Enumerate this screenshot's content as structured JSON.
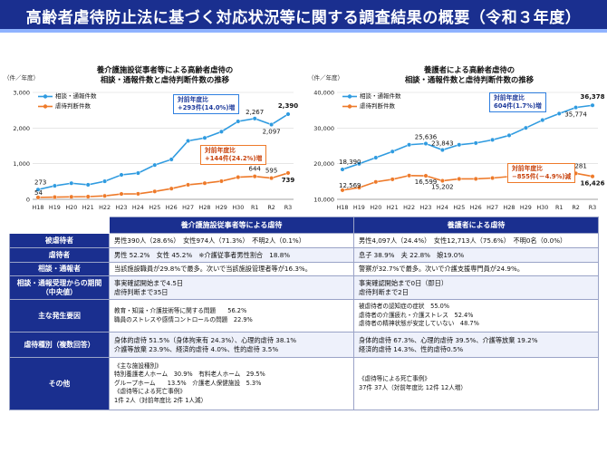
{
  "page": {
    "title": "高齢者虐待防止法に基づく対応状況等に関する調査結果の概要（令和３年度）"
  },
  "colors": {
    "header": "#1a2f8f",
    "consult_line": "#2f9be0",
    "judgment_line": "#ee7a2a",
    "callout_blue": "#2f7fe0",
    "callout_orange": "#ee7a2a"
  },
  "chart_data": [
    {
      "type": "line",
      "title": "養介護施設従事者等による高齢者虐待の\n相談・通報件数と虐待判断件数の推移",
      "yunit": "（件／年度）",
      "categories": [
        "H18",
        "H19",
        "H20",
        "H21",
        "H22",
        "H23",
        "H24",
        "H25",
        "H26",
        "H27",
        "H28",
        "H29",
        "H30",
        "R1",
        "R2",
        "R3"
      ],
      "ylim": [
        0,
        3000
      ],
      "yticks": [
        "0",
        "1,000",
        "2,000",
        "3,000"
      ],
      "yticks_values": [
        0,
        1000,
        2000,
        3000
      ],
      "series": [
        {
          "name": "相談・通報件数",
          "values": [
            273,
            379,
            451,
            408,
            506,
            687,
            736,
            962,
            1120,
            1640,
            1723,
            1898,
            2187,
            2267,
            2097,
            2390
          ]
        },
        {
          "name": "虐待判断件数",
          "values": [
            54,
            62,
            70,
            76,
            96,
            151,
            155,
            221,
            300,
            408,
            452,
            510,
            621,
            644,
            595,
            739
          ]
        }
      ],
      "point_labels": [
        {
          "series": 0,
          "index": 0,
          "text": "273"
        },
        {
          "series": 1,
          "index": 0,
          "text": "54"
        },
        {
          "series": 0,
          "index": 13,
          "text": "2,267"
        },
        {
          "series": 0,
          "index": 14,
          "text": "2,097"
        },
        {
          "series": 0,
          "index": 15,
          "text": "2,390"
        },
        {
          "series": 1,
          "index": 13,
          "text": "644"
        },
        {
          "series": 1,
          "index": 14,
          "text": "595"
        },
        {
          "series": 1,
          "index": 15,
          "text": "739"
        }
      ],
      "callouts": [
        {
          "text1": "対前年度比",
          "text2": "+293件(14.0%)増",
          "color": "blue"
        },
        {
          "text1": "対前年度比",
          "text2": "+144件(24.2%)増",
          "color": "orange"
        }
      ]
    },
    {
      "type": "line",
      "title": "養護者による高齢者虐待の\n相談・通報件数と虐待判断件数の推移",
      "yunit": "（件／年度）",
      "categories": [
        "H18",
        "H19",
        "H20",
        "H21",
        "H22",
        "H23",
        "H24",
        "H25",
        "H26",
        "H27",
        "H28",
        "H29",
        "H30",
        "R1",
        "R2",
        "R3"
      ],
      "ylim": [
        10000,
        40000
      ],
      "yticks": [
        "10,000",
        "20,000",
        "30,000",
        "40,000"
      ],
      "yticks_values": [
        10000,
        20000,
        30000,
        40000
      ],
      "series": [
        {
          "name": "相談・通報件数",
          "values": [
            18390,
            19971,
            21692,
            23404,
            25315,
            25636,
            23843,
            25310,
            25791,
            26688,
            27940,
            30040,
            32231,
            34057,
            35774,
            36378
          ]
        },
        {
          "name": "虐待判断件数",
          "values": [
            12569,
            13273,
            14889,
            15615,
            16668,
            16599,
            15202,
            15731,
            15739,
            15976,
            16384,
            17078,
            17249,
            16928,
            17281,
            16426
          ]
        }
      ],
      "point_labels": [
        {
          "series": 0,
          "index": 0,
          "text": "18,390"
        },
        {
          "series": 1,
          "index": 0,
          "text": "12,569"
        },
        {
          "series": 0,
          "index": 5,
          "text": "25,636"
        },
        {
          "series": 1,
          "index": 5,
          "text": "16,599"
        },
        {
          "series": 0,
          "index": 6,
          "text": "23,843"
        },
        {
          "series": 1,
          "index": 6,
          "text": "15,202"
        },
        {
          "series": 0,
          "index": 14,
          "text": "35,774"
        },
        {
          "series": 0,
          "index": 15,
          "text": "36,378"
        },
        {
          "series": 1,
          "index": 14,
          "text": "17,281"
        },
        {
          "series": 1,
          "index": 15,
          "text": "16,426"
        }
      ],
      "callouts": [
        {
          "text1": "対前年度比",
          "text2": "604件(1.7%)増",
          "color": "blue"
        },
        {
          "text1": "対前年度比",
          "text2": "−855件(－4.9%)減",
          "color": "orange"
        }
      ]
    }
  ],
  "table": {
    "col_headers": [
      "養介護施設従事者等による虐待",
      "養護者による虐待"
    ],
    "rows": [
      {
        "label": "被虐待者",
        "left": "男性390人（28.6%）　女性974人（71.3%）　不明2人（0.1%）",
        "right": "男性4,097人（24.4%）　女性12,713人（75.6%）　不明0名（0.0%）"
      },
      {
        "label": "虐待者",
        "left": "男性 52.2%　女性 45.2%　※介護従事者男性割合　18.8%",
        "right": "息子 38.9%　夫 22.8%　娘19.0%"
      },
      {
        "label": "相談・通報者",
        "left": "当該施設職員が29.8%で最多。次いで当該施設管理者等が16.3%。",
        "right": "警察が32.7%で最多。次いで介護支援専門員が24.9%。"
      },
      {
        "label": "相談・通報受理からの期間（中央値）",
        "left": "事実確認開始まで4.5日\n虐待判断まで35日",
        "right": "事実確認開始まで0日（即日）\n虐待判断まで2日"
      },
      {
        "label": "主な発生要因",
        "left": "教育・知識・介護技術等に関する問題　　56.2%\n職員のストレスや感情コントロールの問題　22.9%",
        "right": "被虐待者の認知症の症状　55.0%\n虐待者の介護疲れ・介護ストレス　52.4%\n虐待者の精神状態が安定していない　48.7%"
      },
      {
        "label": "虐待種別（複数回答）",
        "left": "身体的虐待 51.5%（身体拘束有 24.3%）、心理的虐待 38.1%\n介護等放棄 23.9%、経済的虐待 4.0%、性的虐待 3.5%",
        "right": "身体的虐待 67.3%、心理的虐待 39.5%、介護等放棄 19.2%\n経済的虐待 14.3%、性的虐待0.5%"
      },
      {
        "label": "その他",
        "left": "《主な施設種別》\n特別養護老人ホーム　30.9%　有料老人ホーム　29.5%\nグループホーム　　13.5%　介護老人保健施設　5.3%\n《虐待等による死亡事例》\n1件 2人（対前年度比 2件 1人減）",
        "right": "《虐待等による死亡事例》\n37件 37人（対前年度比 12件 12人増）"
      }
    ]
  }
}
